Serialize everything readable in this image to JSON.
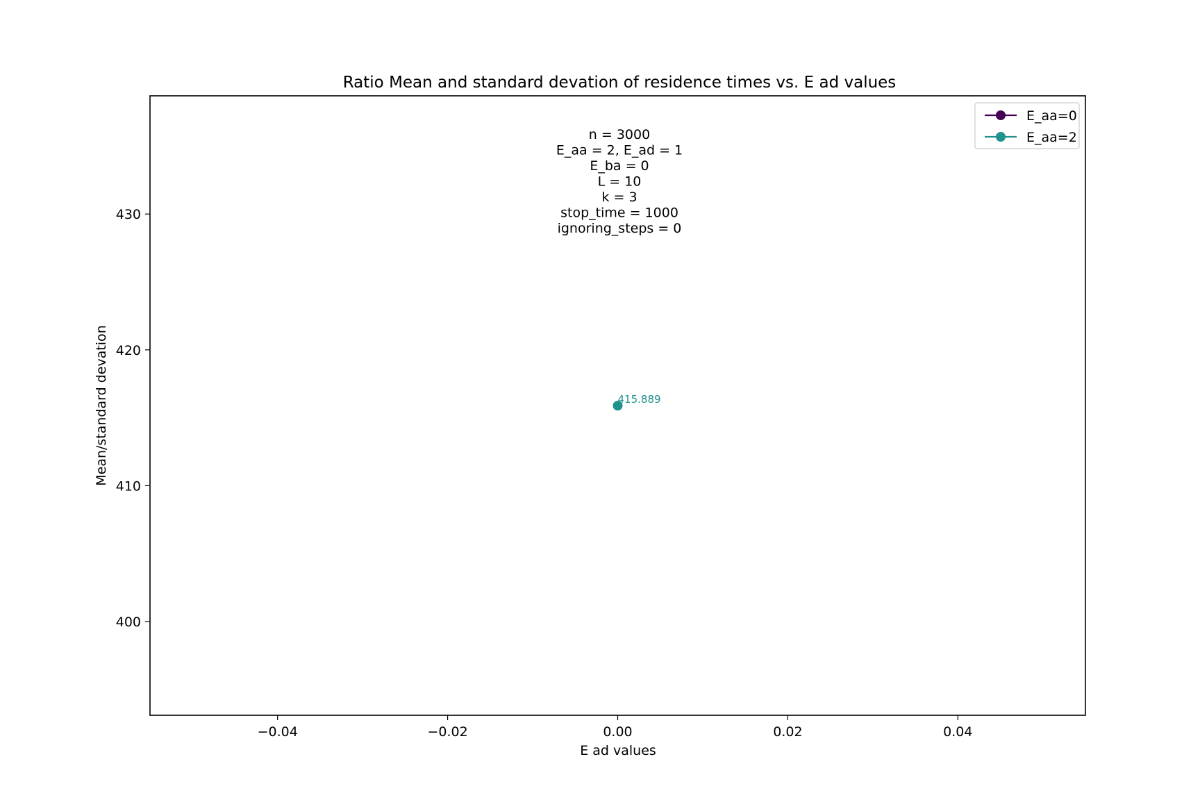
{
  "chart_data": {
    "type": "line",
    "title": "Ratio Mean and standard devation of residence times vs. E ad values",
    "xlabel": "E ad values",
    "ylabel": "Mean/standard devation",
    "xlim": [
      -0.055,
      0.055
    ],
    "ylim": [
      393.1,
      438.7
    ],
    "xticks": [
      -0.04,
      -0.02,
      0.0,
      0.02,
      0.04
    ],
    "xtick_labels": [
      "−0.04",
      "−0.02",
      "0.00",
      "0.02",
      "0.04"
    ],
    "yticks": [
      400,
      410,
      420,
      430
    ],
    "ytick_labels": [
      "400",
      "410",
      "420",
      "430"
    ],
    "grid": false,
    "legend_position": "top-right",
    "annotation_lines": [
      "n = 3000",
      "E_aa = 2, E_ad = 1",
      "E_ba = 0",
      "L = 10",
      "k = 3",
      "stop_time = 1000",
      "ignoring_steps = 0"
    ],
    "series": [
      {
        "name": "E_aa=0",
        "color": "#440154",
        "x": [],
        "y": [],
        "point_labels": []
      },
      {
        "name": "E_aa=2",
        "color": "#21918c",
        "x": [
          0.0
        ],
        "y": [
          415.889
        ],
        "point_labels": [
          "415.889"
        ]
      }
    ]
  }
}
